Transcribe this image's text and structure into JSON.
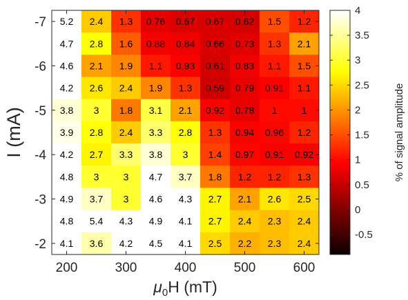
{
  "chart_data": {
    "type": "heatmap",
    "xlabel_symbol": "μ",
    "xlabel_subscript": "0",
    "xlabel_rest": "H (mT)",
    "ylabel": "I (mA)",
    "colorbar_label": "% of signal amplitude",
    "x_values": [
      200,
      250,
      300,
      350,
      400,
      450,
      500,
      550,
      600
    ],
    "y_values": [
      -7,
      -6.5,
      -6,
      -5.5,
      -5,
      -4.5,
      -4,
      -3.5,
      -3,
      -2.5,
      -2
    ],
    "x_ticks": [
      "200",
      "300",
      "400",
      "500",
      "600"
    ],
    "x_tick_values": [
      200,
      300,
      400,
      500,
      600
    ],
    "y_ticks": [
      "-7",
      "-6",
      "-5",
      "-4",
      "-3",
      "-2"
    ],
    "y_tick_values": [
      -7,
      -6,
      -5,
      -4,
      -3,
      -2
    ],
    "xlim": [
      175,
      625
    ],
    "ylim": [
      -7.25,
      -1.75
    ],
    "colorbar_range": [
      -0.9,
      4
    ],
    "colorbar_ticks": [
      "4",
      "3.5",
      "3",
      "2.5",
      "2",
      "1.5",
      "1",
      "0.5",
      "0",
      "-0.5"
    ],
    "colorbar_tick_values": [
      4,
      3.5,
      3,
      2.5,
      2,
      1.5,
      1,
      0.5,
      0,
      -0.5
    ],
    "colormap": "hot",
    "values": [
      [
        5.2,
        2.4,
        1.3,
        0.76,
        0.67,
        0.67,
        0.62,
        1.5,
        1.2
      ],
      [
        4.7,
        2.8,
        1.6,
        0.88,
        0.84,
        0.66,
        0.73,
        1.3,
        2.1
      ],
      [
        4.6,
        2.1,
        1.9,
        1.1,
        0.93,
        0.61,
        0.83,
        1.1,
        1.5
      ],
      [
        4.2,
        2.6,
        2.4,
        1.9,
        1.3,
        0.59,
        0.79,
        0.91,
        1.1
      ],
      [
        3.8,
        3,
        1.8,
        3.1,
        2.1,
        0.92,
        0.78,
        1,
        1
      ],
      [
        3.9,
        2.8,
        2.4,
        3.3,
        2.8,
        1.3,
        0.94,
        0.96,
        1.2
      ],
      [
        4.2,
        2.7,
        3.3,
        3.8,
        3,
        1.4,
        0.97,
        0.91,
        0.92
      ],
      [
        4.8,
        3,
        3,
        4.7,
        3.7,
        1.8,
        1.2,
        1.2,
        1.3
      ],
      [
        4.9,
        3.7,
        3,
        4.6,
        4.3,
        2.7,
        2.1,
        2.6,
        2.5
      ],
      [
        4.8,
        5.4,
        4.3,
        4.9,
        4.1,
        2.7,
        2.4,
        2.3,
        2.4
      ],
      [
        4.1,
        3.6,
        4.2,
        4.5,
        4.1,
        2.5,
        2.2,
        2.3,
        2.4
      ]
    ]
  }
}
